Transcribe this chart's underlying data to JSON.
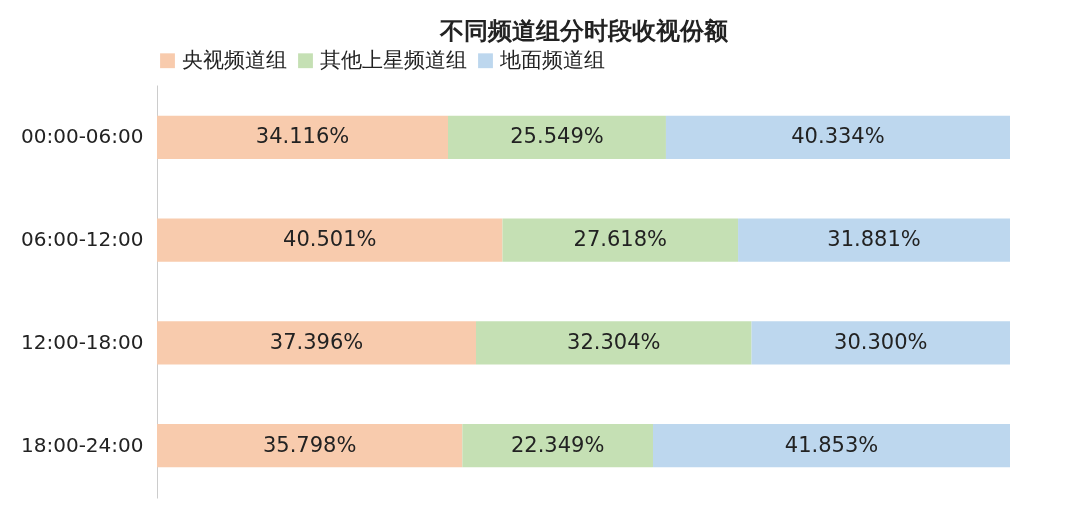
{
  "chart_data": {
    "type": "bar",
    "orientation": "horizontal",
    "stacked": true,
    "title": "不同频道组分时段收视份额",
    "legend": "top",
    "categories": [
      "00:00-06:00",
      "06:00-12:00",
      "12:00-18:00",
      "18:00-24:00"
    ],
    "series": [
      {
        "name": "央视频道组",
        "color": "#f8cbad",
        "values": [
          34.116,
          40.501,
          37.396,
          35.798
        ],
        "value_labels": [
          "34.116%",
          "40.501%",
          "37.396%",
          "35.798%"
        ]
      },
      {
        "name": "其他上星频道组",
        "color": "#c5e0b4",
        "values": [
          25.549,
          27.618,
          32.304,
          22.349
        ],
        "value_labels": [
          "25.549%",
          "27.618%",
          "32.304%",
          "22.349%"
        ]
      },
      {
        "name": "地面频道组",
        "color": "#bdd7ee",
        "values": [
          40.334,
          31.881,
          30.3,
          41.853
        ],
        "value_labels": [
          "40.334%",
          "31.881%",
          "30.300%",
          "41.853%"
        ]
      }
    ],
    "tick_labels": "y"
  }
}
